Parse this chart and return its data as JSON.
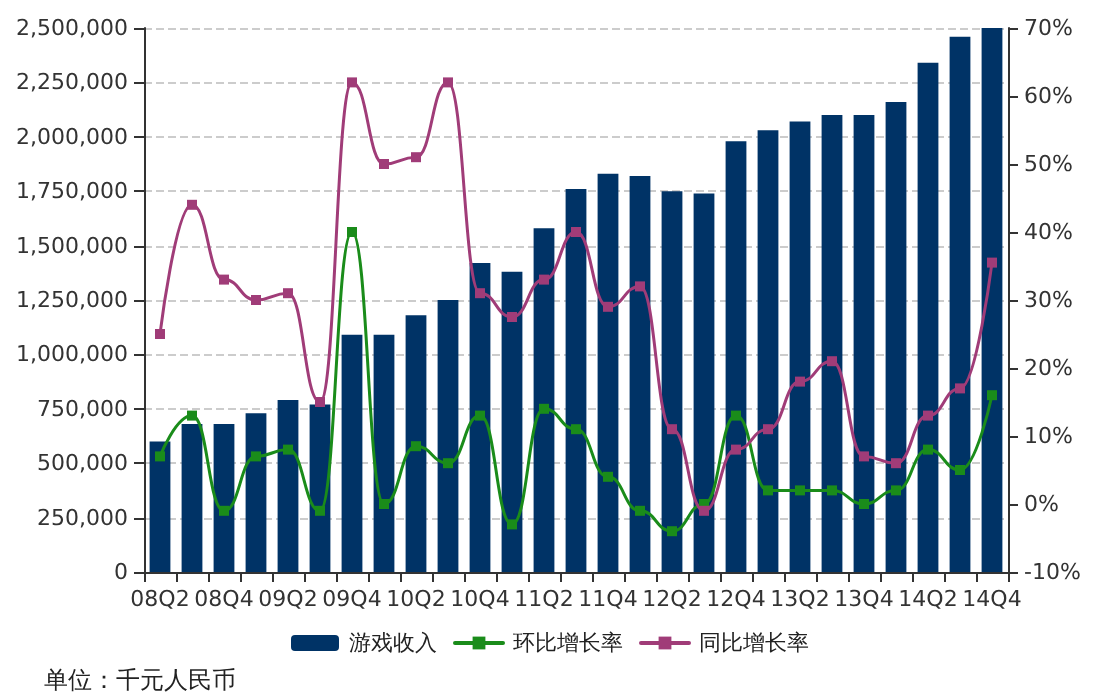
{
  "chart_data": {
    "type": "bar",
    "categories": [
      "08Q2",
      null,
      "08Q4",
      null,
      "09Q2",
      null,
      "09Q4",
      null,
      "10Q2",
      null,
      "10Q4",
      null,
      "11Q2",
      null,
      "11Q4",
      null,
      "12Q2",
      null,
      "12Q4",
      null,
      "13Q2",
      null,
      "13Q4",
      null,
      "14Q2",
      null,
      "14Q4"
    ],
    "series": [
      {
        "name": "游戏收入",
        "color": "#003366",
        "values": [
          600000,
          680000,
          680000,
          730000,
          790000,
          770000,
          1090000,
          1090000,
          1180000,
          1250000,
          1420000,
          1380000,
          1580000,
          1760000,
          1830000,
          1820000,
          1750000,
          1740000,
          1980000,
          2030000,
          2070000,
          2100000,
          2100000,
          2160000,
          2340000,
          2460000,
          2500000
        ]
      },
      {
        "name": "环比增长率",
        "type": "line",
        "axis": "y2",
        "color": "#1a8c1a",
        "values": [
          7,
          13,
          -1,
          7,
          8,
          -1,
          40,
          0,
          8.5,
          6,
          13,
          -3,
          14,
          11,
          4,
          -1,
          -4,
          0,
          13,
          2,
          2,
          2,
          0,
          2,
          8,
          5,
          16
        ]
      },
      {
        "name": "同比增长率",
        "type": "line",
        "axis": "y2",
        "color": "#a03c78",
        "values": [
          25,
          44,
          33,
          30,
          31,
          15,
          62,
          50,
          51,
          62,
          31,
          27.5,
          33,
          40,
          29,
          32,
          11,
          -1,
          8,
          11,
          18,
          21,
          7,
          6,
          13,
          17,
          35.5
        ]
      }
    ],
    "ylim": [
      0,
      2500000
    ],
    "yticks": [
      {
        "value": 0,
        "label": "0"
      },
      {
        "value": 250000,
        "label": "250,000"
      },
      {
        "value": 500000,
        "label": "500,000"
      },
      {
        "value": 750000,
        "label": "750,000"
      },
      {
        "value": 1000000,
        "label": "1,000,000"
      },
      {
        "value": 1250000,
        "label": "1,250,000"
      },
      {
        "value": 1500000,
        "label": "1,500,000"
      },
      {
        "value": 1750000,
        "label": "1,750,000"
      },
      {
        "value": 2000000,
        "label": "2,000,000"
      },
      {
        "value": 2250000,
        "label": "2,250,000"
      },
      {
        "value": 2500000,
        "label": "2,500,000"
      }
    ],
    "y2lim": [
      -10,
      70
    ],
    "y2ticks": [
      {
        "value": -10,
        "label": "-10%"
      },
      {
        "value": 0,
        "label": "0%"
      },
      {
        "value": 10,
        "label": "10%"
      },
      {
        "value": 20,
        "label": "20%"
      },
      {
        "value": 30,
        "label": "30%"
      },
      {
        "value": 40,
        "label": "40%"
      },
      {
        "value": 50,
        "label": "50%"
      },
      {
        "value": 60,
        "label": "60%"
      },
      {
        "value": 70,
        "label": "70%"
      }
    ],
    "grid": "y",
    "legend": "bottom",
    "marker": "square",
    "line_style": "solid",
    "annotations": [
      "单位：千元人民币"
    ]
  }
}
